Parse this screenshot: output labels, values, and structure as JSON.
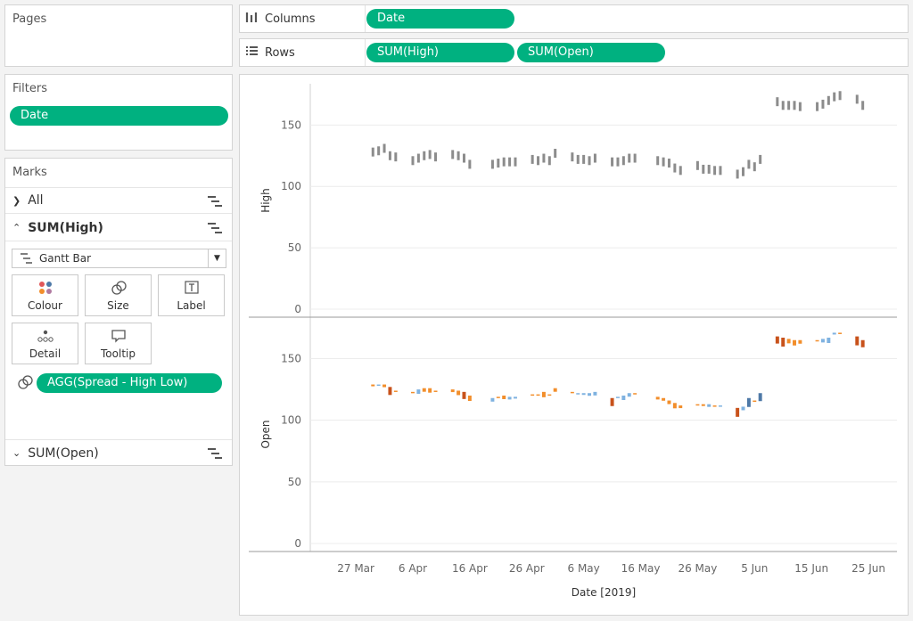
{
  "pages": {
    "title": "Pages"
  },
  "filters": {
    "title": "Filters",
    "pills": [
      "Date"
    ]
  },
  "marks": {
    "title": "Marks",
    "all_label": "All",
    "high_label": "SUM(High)",
    "open_label": "SUM(Open)",
    "mark_type": "Gantt Bar",
    "buttons": {
      "colour": "Colour",
      "size": "Size",
      "label": "Label",
      "detail": "Detail",
      "tooltip": "Tooltip"
    },
    "size_pill": "AGG(Spread - High Low)"
  },
  "shelves": {
    "columns_label": "Columns",
    "rows_label": "Rows",
    "columns_pills": [
      "Date"
    ],
    "rows_pills": [
      "SUM(High)",
      "SUM(Open)"
    ]
  },
  "colors": {
    "pill": "#00b180",
    "gray_mark": "#8c8c8c",
    "orange": "#f28e2b",
    "orange_dark": "#c8521b",
    "blue": "#4e79a7",
    "blue_light": "#7fb2e0"
  },
  "chart_data": {
    "type": "gantt",
    "xlabel": "Date [2019]",
    "x_ticks": [
      "27 Mar",
      "6 Apr",
      "16 Apr",
      "26 Apr",
      "6 May",
      "16 May",
      "26 May",
      "5 Jun",
      "15 Jun",
      "25 Jun"
    ],
    "panes": [
      {
        "ylabel": "High",
        "ylim": [
          0,
          180
        ],
        "y_ticks": [
          0,
          50,
          100,
          150
        ],
        "color": "single-gray"
      },
      {
        "ylabel": "Open",
        "ylim": [
          0,
          180
        ],
        "y_ticks": [
          0,
          50,
          100,
          150
        ],
        "color": "diverging-orange-blue"
      }
    ],
    "x_range_days": [
      -8,
      95
    ],
    "series": [
      {
        "name": "High",
        "points": [
          [
            3,
            128
          ],
          [
            4,
            129
          ],
          [
            5,
            131
          ],
          [
            6,
            125
          ],
          [
            7,
            124
          ],
          [
            10,
            121
          ],
          [
            11,
            123
          ],
          [
            12,
            125
          ],
          [
            13,
            126
          ],
          [
            14,
            124
          ],
          [
            17,
            126
          ],
          [
            18,
            125
          ],
          [
            19,
            123
          ],
          [
            20,
            118
          ],
          [
            24,
            118
          ],
          [
            25,
            119
          ],
          [
            26,
            120
          ],
          [
            27,
            120
          ],
          [
            28,
            120
          ],
          [
            31,
            122
          ],
          [
            32,
            121
          ],
          [
            33,
            123
          ],
          [
            34,
            121
          ],
          [
            35,
            127
          ],
          [
            38,
            124
          ],
          [
            39,
            122
          ],
          [
            40,
            122
          ],
          [
            41,
            121
          ],
          [
            42,
            123
          ],
          [
            45,
            120
          ],
          [
            46,
            120
          ],
          [
            47,
            121
          ],
          [
            48,
            123
          ],
          [
            49,
            123
          ],
          [
            53,
            121
          ],
          [
            54,
            120
          ],
          [
            55,
            119
          ],
          [
            56,
            115
          ],
          [
            57,
            113
          ],
          [
            60,
            117
          ],
          [
            61,
            114
          ],
          [
            62,
            114
          ],
          [
            63,
            113
          ],
          [
            64,
            113
          ],
          [
            67,
            110
          ],
          [
            68,
            112
          ],
          [
            69,
            118
          ],
          [
            70,
            116
          ],
          [
            71,
            122
          ],
          [
            74,
            169
          ],
          [
            75,
            166
          ],
          [
            76,
            166
          ],
          [
            77,
            166
          ],
          [
            78,
            165
          ],
          [
            81,
            165
          ],
          [
            82,
            167
          ],
          [
            83,
            170
          ],
          [
            84,
            173
          ],
          [
            85,
            174
          ],
          [
            88,
            171
          ],
          [
            89,
            166
          ]
        ]
      },
      {
        "name": "Open",
        "points": [
          [
            3,
            129,
            0.2
          ],
          [
            4,
            129,
            0
          ],
          [
            5,
            129,
            0.3
          ],
          [
            6,
            127,
            0.9
          ],
          [
            7,
            124,
            0.1
          ],
          [
            10,
            123,
            0.1
          ],
          [
            11,
            125,
            -0.5
          ],
          [
            12,
            126,
            0.4
          ],
          [
            13,
            126,
            0.5
          ],
          [
            14,
            124,
            0.1
          ],
          [
            17,
            125,
            0.3
          ],
          [
            18,
            124,
            0.5
          ],
          [
            19,
            123,
            0.8
          ],
          [
            20,
            120,
            0.6
          ],
          [
            24,
            118,
            -0.4
          ],
          [
            25,
            119,
            0.1
          ],
          [
            26,
            120,
            0.4
          ],
          [
            27,
            119,
            -0.3
          ],
          [
            28,
            119,
            -0.2
          ],
          [
            31,
            121,
            0.1
          ],
          [
            32,
            121,
            0.1
          ],
          [
            33,
            123,
            0.6
          ],
          [
            34,
            121,
            0.1
          ],
          [
            35,
            126,
            0.4
          ],
          [
            38,
            123,
            0.1
          ],
          [
            39,
            122,
            0
          ],
          [
            40,
            122,
            -0.2
          ],
          [
            41,
            122,
            -0.3
          ],
          [
            42,
            123,
            -0.4
          ],
          [
            45,
            118,
            0.9
          ],
          [
            46,
            119,
            -0.1
          ],
          [
            47,
            120,
            -0.5
          ],
          [
            48,
            122,
            -0.4
          ],
          [
            49,
            122,
            0.1
          ],
          [
            53,
            119,
            0.3
          ],
          [
            54,
            118,
            0.3
          ],
          [
            55,
            116,
            0.4
          ],
          [
            56,
            114,
            0.6
          ],
          [
            57,
            112,
            0.3
          ],
          [
            60,
            113,
            0.1
          ],
          [
            61,
            113,
            0.2
          ],
          [
            62,
            113,
            -0.3
          ],
          [
            63,
            112,
            0.1
          ],
          [
            64,
            112,
            0
          ],
          [
            67,
            110,
            1
          ],
          [
            68,
            111,
            -0.4
          ],
          [
            69,
            118,
            -1
          ],
          [
            70,
            116,
            0.1
          ],
          [
            71,
            122,
            -0.9
          ],
          [
            74,
            168,
            0.8
          ],
          [
            75,
            167,
            1
          ],
          [
            76,
            166,
            0.5
          ],
          [
            77,
            165,
            0.6
          ],
          [
            78,
            165,
            0.4
          ],
          [
            81,
            165,
            0.1
          ],
          [
            82,
            166,
            -0.4
          ],
          [
            83,
            167,
            -0.6
          ],
          [
            84,
            171,
            -0.2
          ],
          [
            85,
            171,
            0.1
          ],
          [
            88,
            168,
            1
          ],
          [
            89,
            165,
            0.8
          ]
        ]
      }
    ]
  }
}
